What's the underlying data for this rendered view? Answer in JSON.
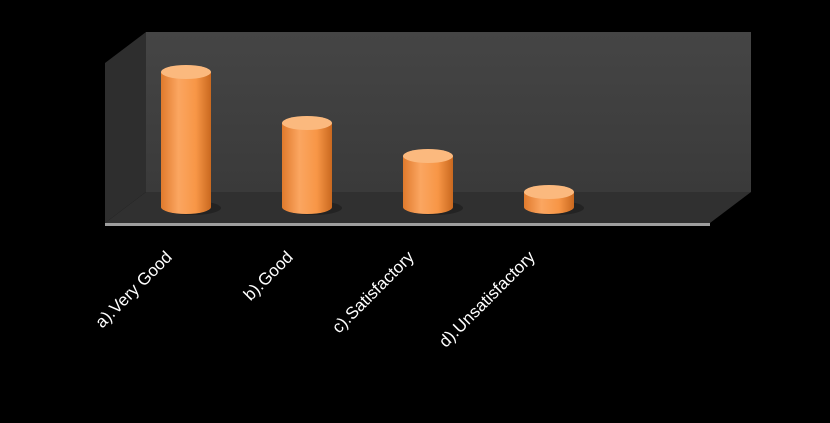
{
  "chart_data": {
    "type": "bar",
    "style": "3d-cylinder",
    "categories": [
      "a).Very Good",
      "b).Good",
      "c).Satisfactory",
      "d).Unsatisfactory"
    ],
    "values": [
      45,
      28,
      17,
      5
    ],
    "ylim": [
      0,
      50
    ],
    "title": "",
    "xlabel": "",
    "ylabel": "",
    "grid": false,
    "legend": "none",
    "colors": {
      "bar": "#F79646",
      "bar_top": "#FBB97E",
      "back_wall": "#3F3F3F",
      "side_wall": "#2E2E2E",
      "floor": "#303030",
      "background": "#000000",
      "axis_line": "#9E9E9E"
    }
  }
}
